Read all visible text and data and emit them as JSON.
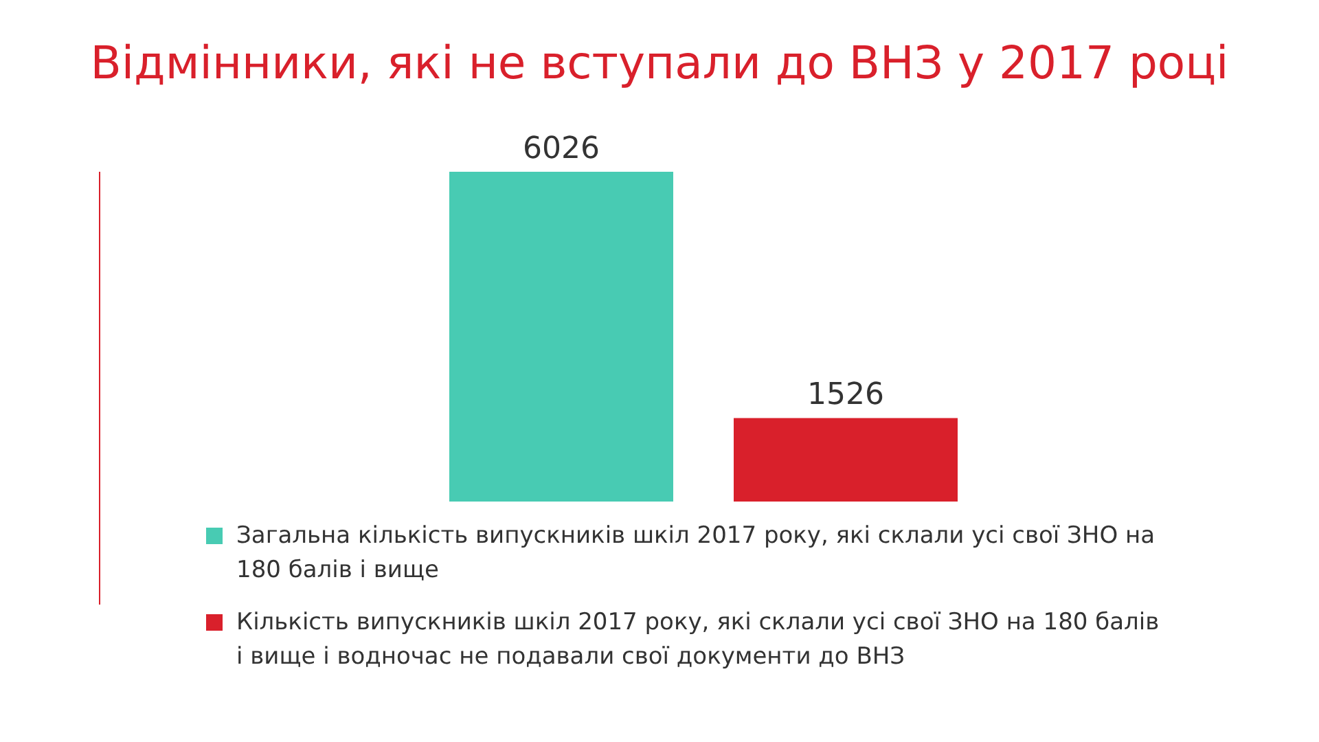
{
  "chart_data": {
    "type": "bar",
    "title": "Відмінники, які не вступали до ВНЗ у 2017 році",
    "categories": [
      null
    ],
    "series": [
      {
        "name": "Загальна кількість випускників шкіл 2017 року, які склали усі свої ЗНО на 180 балів і вище",
        "color": "#48cbb3",
        "values": [
          6026
        ]
      },
      {
        "name": "Кількість випускників шкіл 2017 року, які склали усі свої ЗНО на 180 балів і вище і водночас не подавали свої документи до ВНЗ",
        "color": "#d9202b",
        "values": [
          1526
        ]
      }
    ],
    "data_labels": true,
    "legend": "bottom",
    "grid": false
  }
}
